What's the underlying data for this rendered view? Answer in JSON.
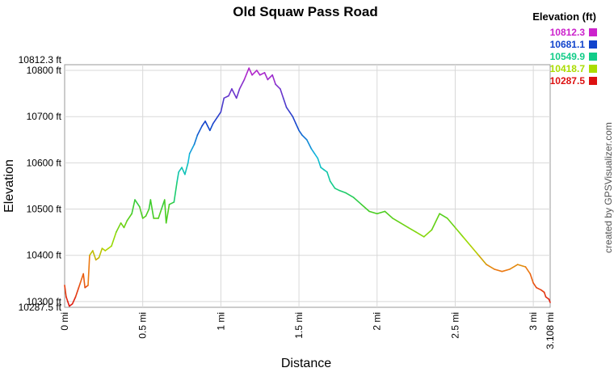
{
  "chart_data": {
    "type": "line",
    "title": "Old Squaw Pass Road",
    "xlabel": "Distance",
    "ylabel": "Elevation",
    "credit": "created by GPSVisualizer.com",
    "xlim": [
      0,
      3.108
    ],
    "ylim": [
      10287.5,
      10812.3
    ],
    "x_ticks": [
      {
        "value": 0,
        "label": "0 mi"
      },
      {
        "value": 0.5,
        "label": "0.5 mi"
      },
      {
        "value": 1,
        "label": "1 mi"
      },
      {
        "value": 1.5,
        "label": "1.5 mi"
      },
      {
        "value": 2,
        "label": "2 mi"
      },
      {
        "value": 2.5,
        "label": "2.5 mi"
      },
      {
        "value": 3,
        "label": "3 mi"
      },
      {
        "value": 3.108,
        "label": "3.108 mi"
      }
    ],
    "y_ticks": [
      {
        "value": 10300,
        "label": "10300 ft"
      },
      {
        "value": 10400,
        "label": "10400 ft"
      },
      {
        "value": 10500,
        "label": "10500 ft"
      },
      {
        "value": 10600,
        "label": "10600 ft"
      },
      {
        "value": 10700,
        "label": "10700 ft"
      },
      {
        "value": 10800,
        "label": "10800 ft"
      }
    ],
    "y_extreme_labels": {
      "max": "10812.3 ft",
      "min": "10287.5 ft"
    },
    "legend": {
      "title": "Elevation (ft)",
      "placement": "top-right",
      "entries": [
        {
          "label": "10812.3",
          "color": "#cc22cc"
        },
        {
          "label": "10681.1",
          "color": "#1144cc"
        },
        {
          "label": "10549.9",
          "color": "#11cc88"
        },
        {
          "label": "10418.7",
          "color": "#aadd00"
        },
        {
          "label": "10287.5",
          "color": "#dd1111"
        }
      ]
    },
    "series": [
      {
        "x": [
          0,
          0.01,
          0.02,
          0.03,
          0.05,
          0.07,
          0.09,
          0.1,
          0.12,
          0.13,
          0.15,
          0.16,
          0.18,
          0.2,
          0.22,
          0.24,
          0.26,
          0.28,
          0.3,
          0.33,
          0.36,
          0.38,
          0.4,
          0.43,
          0.45,
          0.48,
          0.5,
          0.52,
          0.54,
          0.55,
          0.57,
          0.6,
          0.62,
          0.64,
          0.65,
          0.67,
          0.7,
          0.72,
          0.73,
          0.75,
          0.77,
          0.79,
          0.8,
          0.83,
          0.85,
          0.88,
          0.9,
          0.93,
          0.95,
          0.98,
          1.0,
          1.02,
          1.05,
          1.07,
          1.1,
          1.12,
          1.15,
          1.18,
          1.2,
          1.23,
          1.25,
          1.28,
          1.3,
          1.33,
          1.35,
          1.38,
          1.4,
          1.42,
          1.44,
          1.46,
          1.48,
          1.5,
          1.52,
          1.55,
          1.58,
          1.6,
          1.62,
          1.64,
          1.66,
          1.68,
          1.7,
          1.73,
          1.76,
          1.8,
          1.85,
          1.9,
          1.95,
          2.0,
          2.05,
          2.1,
          2.15,
          2.2,
          2.25,
          2.3,
          2.35,
          2.4,
          2.45,
          2.5,
          2.55,
          2.6,
          2.65,
          2.7,
          2.75,
          2.8,
          2.85,
          2.9,
          2.95,
          2.98,
          3.0,
          3.02,
          3.05,
          3.07,
          3.08,
          3.1,
          3.108
        ],
        "values": [
          10335,
          10310,
          10300,
          10290,
          10295,
          10310,
          10330,
          10340,
          10360,
          10330,
          10335,
          10400,
          10410,
          10390,
          10395,
          10415,
          10410,
          10415,
          10420,
          10450,
          10470,
          10460,
          10475,
          10490,
          10520,
          10505,
          10480,
          10485,
          10500,
          10520,
          10480,
          10480,
          10500,
          10520,
          10470,
          10510,
          10515,
          10560,
          10580,
          10590,
          10575,
          10600,
          10620,
          10640,
          10660,
          10680,
          10690,
          10670,
          10685,
          10700,
          10710,
          10740,
          10745,
          10760,
          10740,
          10760,
          10780,
          10805,
          10790,
          10800,
          10790,
          10795,
          10780,
          10790,
          10770,
          10760,
          10740,
          10720,
          10710,
          10700,
          10685,
          10670,
          10660,
          10650,
          10630,
          10620,
          10610,
          10590,
          10585,
          10580,
          10560,
          10545,
          10540,
          10535,
          10525,
          10510,
          10495,
          10490,
          10495,
          10480,
          10470,
          10460,
          10450,
          10440,
          10455,
          10490,
          10480,
          10460,
          10440,
          10420,
          10400,
          10380,
          10370,
          10365,
          10370,
          10380,
          10375,
          10360,
          10340,
          10330,
          10325,
          10320,
          10310,
          10305,
          10298
        ]
      }
    ]
  }
}
